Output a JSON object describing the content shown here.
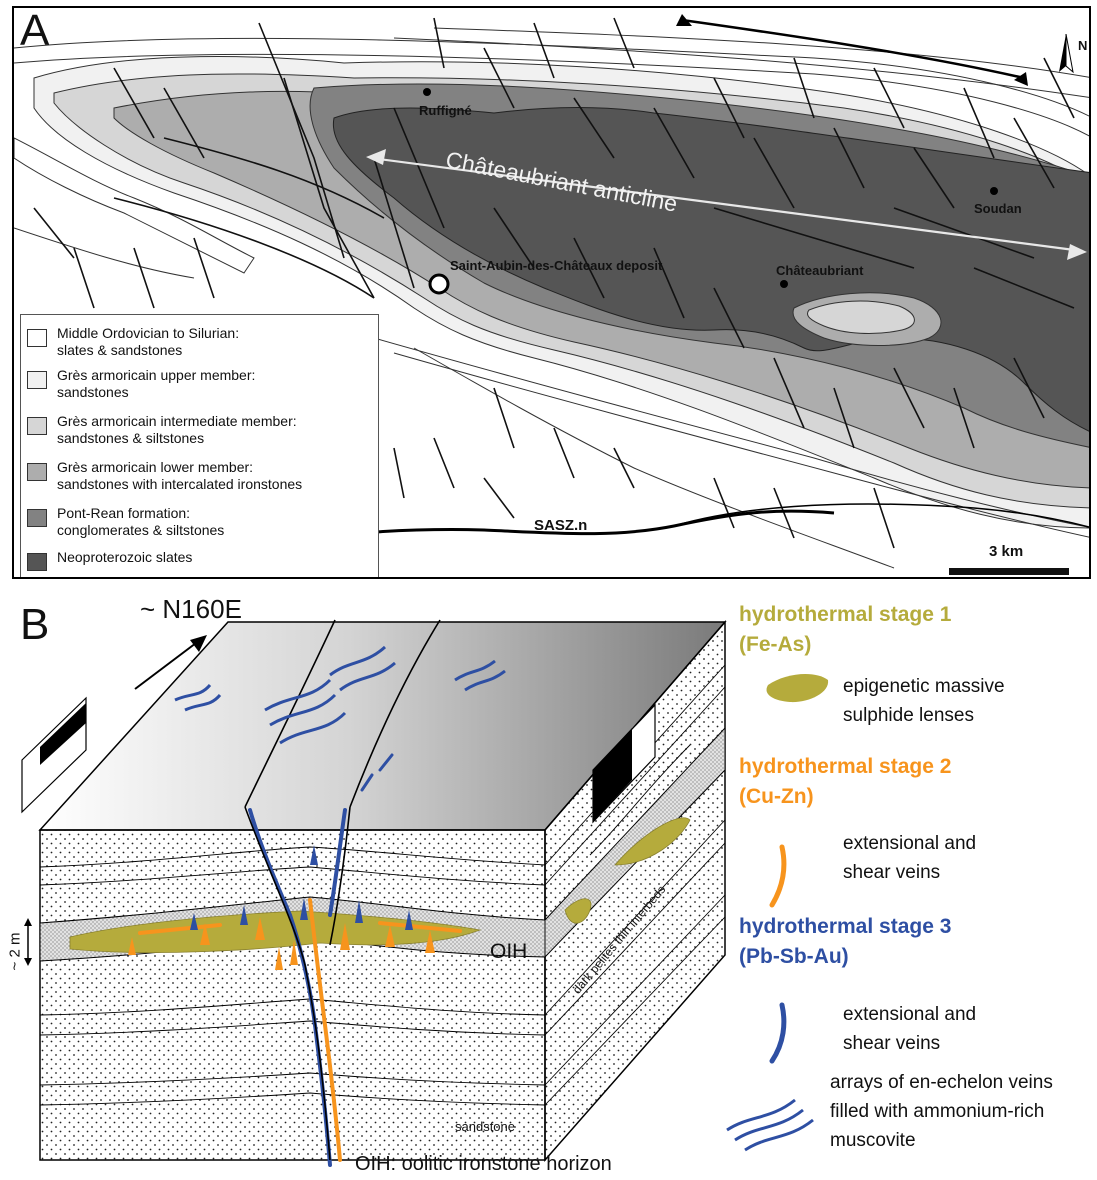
{
  "panel_a": {
    "letter": "A",
    "places": {
      "ruffigne": "Ruffigné",
      "soudan": "Soudan",
      "chateaubriant": "Châteaubriant",
      "deposit": "Saint-Aubin-des-Châteaux deposit"
    },
    "anticline_label": "Châteaubriant anticline",
    "north_label": "N",
    "scale_label": "3 km",
    "fault_label": "SASZ.n",
    "legend": [
      {
        "color": "#ffffff",
        "line1": "Middle Ordovician to Silurian:",
        "line2": "slates & sandstones"
      },
      {
        "color": "#f1f1f1",
        "line1": "Grès armoricain upper member:",
        "line2": "sandstones"
      },
      {
        "color": "#d6d6d6",
        "line1": "Grès armoricain intermediate member:",
        "line2": "sandstones & siltstones"
      },
      {
        "color": "#adadad",
        "line1": "Grès armoricain lower member:",
        "line2": "sandstones with intercalated ironstones"
      },
      {
        "color": "#828282",
        "line1": "Pont-Rean formation:",
        "line2": "conglomerates & siltstones"
      },
      {
        "color": "#555555",
        "line1": "Neoproterozoic slates",
        "line2": ""
      }
    ]
  },
  "panel_b": {
    "letter": "B",
    "direction_label": "~ N160E",
    "thickness_label": "~ 2 m",
    "oih_label": "OIH",
    "oih_caption": "OIH: oolitic ironstone horizon",
    "interbeds_label": "dark pelites thin interbeds",
    "sandstone_label": "sandstone",
    "stages": [
      {
        "title1": "hydrothermal stage 1",
        "title2": "(Fe-As)",
        "color": "#b5ab3c",
        "desc1": "epigenetic massive",
        "desc2": "sulphide lenses"
      },
      {
        "title1": "hydrothermal stage 2",
        "title2": "(Cu-Zn)",
        "color": "#f7941d",
        "desc1": "extensional and",
        "desc2": "shear veins"
      },
      {
        "title1": "hydrothermal stage 3",
        "title2": "(Pb-Sb-Au)",
        "color": "#2e4fa3",
        "desc1": "extensional and",
        "desc2": "shear veins"
      }
    ],
    "echelon_desc": [
      "arrays of en-echelon veins",
      "filled with ammonium-rich",
      "muscovite"
    ]
  }
}
